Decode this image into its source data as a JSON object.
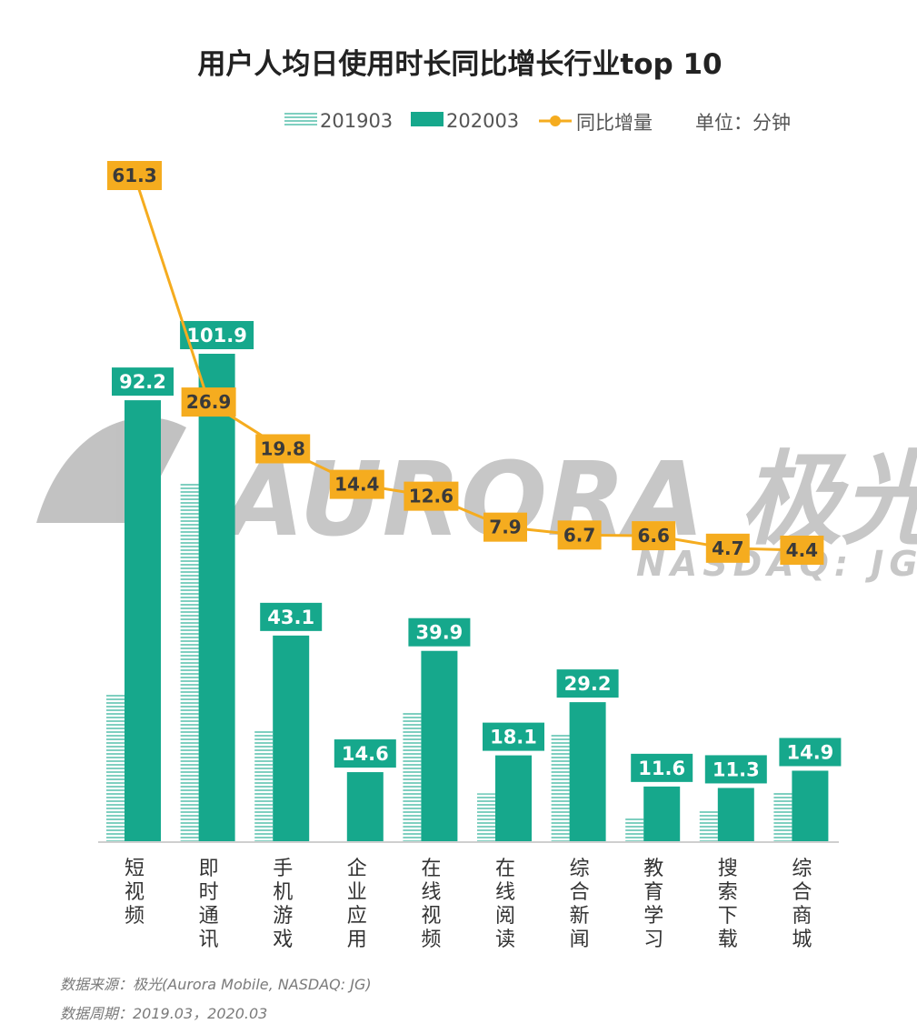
{
  "chart_data": {
    "type": "bar",
    "title": "用户人均日使用时长同比增长行业top 10",
    "unit_label": "单位：分钟",
    "categories": [
      "短视频",
      "即时通讯",
      "手机游戏",
      "企业应用",
      "在线视频",
      "在线阅读",
      "综合新闻",
      "教育学习",
      "搜索下载",
      "综合商城"
    ],
    "series": [
      {
        "name": "201903",
        "kind": "bar",
        "pattern": "striped",
        "color": "#16a88c",
        "values": [
          30.9,
          75.0,
          23.3,
          0.2,
          27.3,
          10.2,
          22.6,
          5.0,
          6.6,
          10.5
        ]
      },
      {
        "name": "202003",
        "kind": "bar",
        "pattern": "solid",
        "color": "#16a88c",
        "values": [
          92.2,
          101.9,
          43.1,
          14.6,
          39.9,
          18.1,
          29.2,
          11.6,
          11.3,
          14.9
        ],
        "labels": [
          "92.2",
          "101.9",
          "43.1",
          "14.6",
          "39.9",
          "18.1",
          "29.2",
          "11.6",
          "11.3",
          "14.9"
        ]
      },
      {
        "name": "同比增量",
        "kind": "line",
        "color": "#f5ac1f",
        "values": [
          61.3,
          26.9,
          19.8,
          14.4,
          12.6,
          7.9,
          6.7,
          6.6,
          4.7,
          4.4
        ],
        "labels": [
          "61.3",
          "26.9",
          "19.8",
          "14.4",
          "12.6",
          "7.9",
          "6.7",
          "6.6",
          "4.7",
          "4.4"
        ]
      }
    ],
    "legend_position": "top-right",
    "grid": false
  },
  "watermark": {
    "text": "AURORA 极光",
    "sub": "NASDAQ: JG"
  },
  "footer": {
    "source": "数据来源：极光(Aurora Mobile, NASDAQ: JG)",
    "period": "数据周期：2019.03，2020.03"
  }
}
